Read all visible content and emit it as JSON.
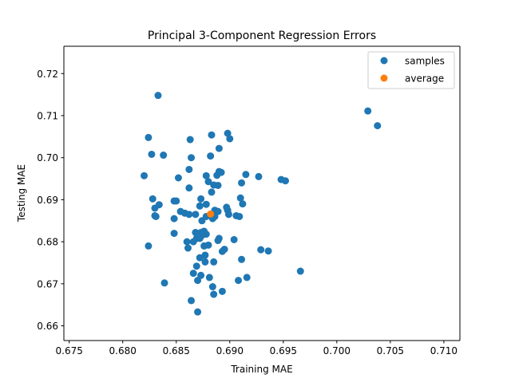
{
  "chart_data": {
    "type": "scatter",
    "title": "Principal 3-Component Regression Errors",
    "xlabel": "Training MAE",
    "ylabel": "Testing MAE",
    "xlim": [
      0.6745,
      0.7115
    ],
    "ylim": [
      0.6565,
      0.7265
    ],
    "x_ticks": [
      "0.675",
      "0.680",
      "0.685",
      "0.690",
      "0.695",
      "0.700",
      "0.705",
      "0.710"
    ],
    "x_tick_values": [
      0.675,
      0.68,
      0.685,
      0.69,
      0.695,
      0.7,
      0.705,
      0.71
    ],
    "y_ticks": [
      "0.66",
      "0.67",
      "0.68",
      "0.69",
      "0.70",
      "0.71",
      "0.72"
    ],
    "y_tick_values": [
      0.66,
      0.67,
      0.68,
      0.69,
      0.7,
      0.71,
      0.72
    ],
    "grid": false,
    "legend_position": "top-right",
    "series": [
      {
        "name": "samples",
        "color": "#1f77b4",
        "points": [
          [
            0.6833,
            0.7148
          ],
          [
            0.7029,
            0.7111
          ],
          [
            0.7038,
            0.7076
          ],
          [
            0.6824,
            0.7048
          ],
          [
            0.6898,
            0.7058
          ],
          [
            0.6883,
            0.7054
          ],
          [
            0.6863,
            0.7043
          ],
          [
            0.69,
            0.7045
          ],
          [
            0.689,
            0.7022
          ],
          [
            0.6827,
            0.7008
          ],
          [
            0.6838,
            0.7006
          ],
          [
            0.6864,
            0.7
          ],
          [
            0.6882,
            0.7004
          ],
          [
            0.6862,
            0.6972
          ],
          [
            0.682,
            0.6957
          ],
          [
            0.6852,
            0.6952
          ],
          [
            0.6878,
            0.6957
          ],
          [
            0.6888,
            0.6958
          ],
          [
            0.689,
            0.6967
          ],
          [
            0.6892,
            0.6965
          ],
          [
            0.6915,
            0.696
          ],
          [
            0.6927,
            0.6955
          ],
          [
            0.6948,
            0.6948
          ],
          [
            0.6952,
            0.6945
          ],
          [
            0.688,
            0.6943
          ],
          [
            0.6885,
            0.6935
          ],
          [
            0.6889,
            0.6934
          ],
          [
            0.6911,
            0.694
          ],
          [
            0.6862,
            0.6928
          ],
          [
            0.6883,
            0.6918
          ],
          [
            0.6828,
            0.6902
          ],
          [
            0.6848,
            0.6897
          ],
          [
            0.685,
            0.6897
          ],
          [
            0.6873,
            0.6902
          ],
          [
            0.691,
            0.6904
          ],
          [
            0.6834,
            0.6888
          ],
          [
            0.683,
            0.688
          ],
          [
            0.6872,
            0.6885
          ],
          [
            0.6878,
            0.6889
          ],
          [
            0.6897,
            0.6882
          ],
          [
            0.6912,
            0.689
          ],
          [
            0.6854,
            0.6872
          ],
          [
            0.6858,
            0.6868
          ],
          [
            0.6862,
            0.6865
          ],
          [
            0.6868,
            0.6865
          ],
          [
            0.6886,
            0.6875
          ],
          [
            0.6889,
            0.6872
          ],
          [
            0.6898,
            0.6875
          ],
          [
            0.6899,
            0.6865
          ],
          [
            0.6906,
            0.6862
          ],
          [
            0.6909,
            0.686
          ],
          [
            0.6831,
            0.686
          ],
          [
            0.683,
            0.6862
          ],
          [
            0.6848,
            0.6855
          ],
          [
            0.6874,
            0.685
          ],
          [
            0.6878,
            0.686
          ],
          [
            0.6882,
            0.6862
          ],
          [
            0.6884,
            0.6855
          ],
          [
            0.6886,
            0.686
          ],
          [
            0.6848,
            0.682
          ],
          [
            0.6868,
            0.6822
          ],
          [
            0.6873,
            0.6822
          ],
          [
            0.6876,
            0.6825
          ],
          [
            0.6878,
            0.6818
          ],
          [
            0.686,
            0.68
          ],
          [
            0.6866,
            0.68
          ],
          [
            0.6869,
            0.6808
          ],
          [
            0.6872,
            0.6808
          ],
          [
            0.6874,
            0.6815
          ],
          [
            0.6889,
            0.6803
          ],
          [
            0.689,
            0.6808
          ],
          [
            0.6904,
            0.6805
          ],
          [
            0.6824,
            0.679
          ],
          [
            0.6861,
            0.6785
          ],
          [
            0.6876,
            0.679
          ],
          [
            0.688,
            0.6792
          ],
          [
            0.6893,
            0.6777
          ],
          [
            0.6895,
            0.6782
          ],
          [
            0.6929,
            0.6781
          ],
          [
            0.6936,
            0.6778
          ],
          [
            0.6877,
            0.6768
          ],
          [
            0.6872,
            0.6762
          ],
          [
            0.6911,
            0.6758
          ],
          [
            0.6869,
            0.6742
          ],
          [
            0.6877,
            0.6752
          ],
          [
            0.6885,
            0.6752
          ],
          [
            0.6966,
            0.673
          ],
          [
            0.6866,
            0.6725
          ],
          [
            0.6873,
            0.672
          ],
          [
            0.6881,
            0.6715
          ],
          [
            0.6916,
            0.6715
          ],
          [
            0.687,
            0.6708
          ],
          [
            0.6908,
            0.6708
          ],
          [
            0.6839,
            0.6702
          ],
          [
            0.6884,
            0.6693
          ],
          [
            0.6893,
            0.6682
          ],
          [
            0.6885,
            0.6675
          ],
          [
            0.6864,
            0.666
          ],
          [
            0.687,
            0.6633
          ]
        ]
      },
      {
        "name": "average",
        "color": "#ff7f0e",
        "points": [
          [
            0.6882,
            0.6866
          ]
        ]
      }
    ]
  }
}
